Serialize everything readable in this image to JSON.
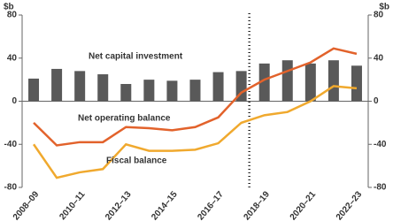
{
  "chart_data": {
    "type": "bar_line",
    "ylabel": "$b",
    "y2label": "$b",
    "categories": [
      "2008–09",
      null,
      "2010–11",
      null,
      "2012–13",
      null,
      "2014–15",
      null,
      "2016–17",
      null,
      "2018–19",
      null,
      "2020–21",
      null,
      "2022–23"
    ],
    "series": [
      {
        "name": "Net capital investment",
        "type": "bar",
        "color": "#595959",
        "values": [
          21,
          30,
          28,
          25,
          16,
          20,
          19,
          20,
          27,
          28,
          35,
          38,
          35,
          38,
          33
        ]
      },
      {
        "name": "Net operating balance",
        "type": "line",
        "color": "#e2622b",
        "values": [
          -20,
          -41,
          -38,
          -38,
          -24,
          -25,
          -27,
          -24,
          -15,
          8,
          20,
          28,
          36,
          49,
          44
        ]
      },
      {
        "name": "Fiscal balance",
        "type": "line",
        "color": "#f0a92e",
        "values": [
          -40,
          -71,
          -66,
          -63,
          -40,
          -46,
          -46,
          -45,
          -39,
          -20,
          -13,
          -10,
          0,
          14,
          12
        ]
      }
    ],
    "ylim": [
      -80,
      80
    ],
    "yticks": [
      -80,
      -40,
      0,
      40,
      80
    ],
    "y2lim": [
      -80,
      80
    ],
    "y2ticks": [
      -80,
      -40,
      0,
      40,
      80
    ],
    "grid": false
  }
}
